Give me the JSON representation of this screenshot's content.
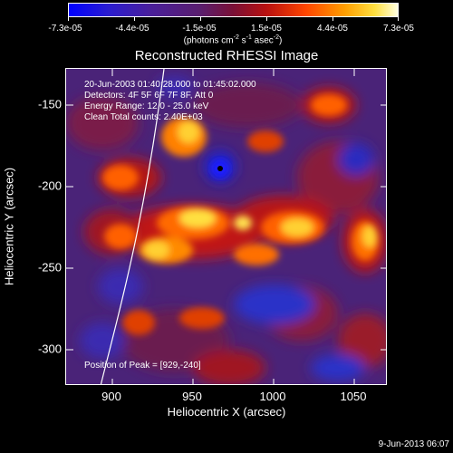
{
  "colorbar": {
    "labels": [
      "-7.3e-05",
      "-4.4e-05",
      "-1.5e-05",
      "1.5e-05",
      "4.4e-05",
      "7.3e-05"
    ],
    "unit_prefix": "(photons cm",
    "unit_sup1": "-2",
    "unit_mid": " s",
    "unit_sup2": "-1",
    "unit_mid2": " asec",
    "unit_sup3": "-2",
    "unit_suffix": ")"
  },
  "title": "Reconstructed RHESSI Image",
  "info": {
    "line1": "20-Jun-2003 01:40:28.000 to 01:45:02.000",
    "line2": "Detectors: 4F 5F 6F 7F 8F, Att 0",
    "line3": "Energy Range: 12.0 - 25.0 keV",
    "line4": "Clean     Total counts: 2.40E+03",
    "peak": "Position of Peak = [929,-240]"
  },
  "axes": {
    "xlabel": "Heliocentric X (arcsec)",
    "ylabel": "Heliocentric Y (arcsec)",
    "xticks": [
      "900",
      "950",
      "1000",
      "1050"
    ],
    "yticks": [
      "-150",
      "-200",
      "-250",
      "-300"
    ]
  },
  "footer": {
    "date": "9-Jun-2013 06:07"
  }
}
